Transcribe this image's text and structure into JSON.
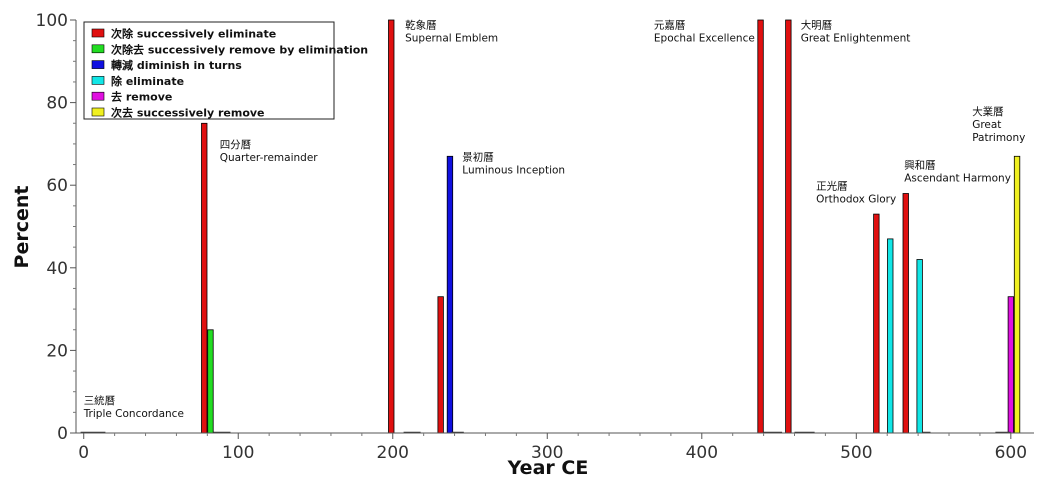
{
  "chart_data": {
    "type": "bar",
    "xlabel": "Year CE",
    "ylabel": "Percent",
    "xlim": [
      -5,
      615
    ],
    "ylim": [
      0,
      100
    ],
    "xticks": [
      0,
      100,
      200,
      300,
      400,
      500,
      600
    ],
    "yticks": [
      0,
      20,
      40,
      60,
      80,
      100
    ],
    "legend": {
      "position": "top-left"
    },
    "series": [
      {
        "name": "次除 successively eliminate",
        "color": "#e01010"
      },
      {
        "name": "次除去 successively remove by elimination",
        "color": "#22dd22"
      },
      {
        "name": "轉減 diminish in turns",
        "color": "#1010e0"
      },
      {
        "name": "除 eliminate",
        "color": "#11e6e6"
      },
      {
        "name": "去 remove",
        "color": "#e010e0"
      },
      {
        "name": "次去 successively remove",
        "color": "#f0f020"
      }
    ],
    "bars": [
      {
        "x": 78,
        "series": 0,
        "value": 75
      },
      {
        "x": 82,
        "series": 1,
        "value": 25
      },
      {
        "x": 199,
        "series": 0,
        "value": 100
      },
      {
        "x": 231,
        "series": 0,
        "value": 33
      },
      {
        "x": 237,
        "series": 2,
        "value": 67
      },
      {
        "x": 438,
        "series": 0,
        "value": 100
      },
      {
        "x": 456,
        "series": 0,
        "value": 100
      },
      {
        "x": 513,
        "series": 0,
        "value": 53
      },
      {
        "x": 522,
        "series": 3,
        "value": 47
      },
      {
        "x": 532,
        "series": 0,
        "value": 58
      },
      {
        "x": 541,
        "series": 3,
        "value": 42
      },
      {
        "x": 600,
        "series": 4,
        "value": 33
      },
      {
        "x": 604,
        "series": 5,
        "value": 67
      }
    ],
    "zero_segments": [
      [
        -2,
        14
      ],
      [
        84,
        95
      ],
      [
        207,
        218
      ],
      [
        238,
        246
      ],
      [
        440,
        452
      ],
      [
        460,
        473
      ],
      [
        543,
        548
      ],
      [
        590,
        600
      ]
    ],
    "annotations": [
      {
        "x": 0,
        "y": 7,
        "lines": [
          "三統曆",
          "Triple Concordance"
        ]
      },
      {
        "x": 88,
        "y": 69,
        "lines": [
          "四分曆",
          "Quarter-remainder"
        ]
      },
      {
        "x": 208,
        "y": 98,
        "lines": [
          "乾象曆",
          "Supernal Emblem"
        ]
      },
      {
        "x": 245,
        "y": 66,
        "lines": [
          "景初曆",
          "Luminous Inception"
        ]
      },
      {
        "x": 369,
        "y": 98,
        "lines": [
          "元嘉曆",
          "Epochal Excellence"
        ]
      },
      {
        "x": 464,
        "y": 98,
        "lines": [
          "大明曆",
          "Great Enlightenment"
        ]
      },
      {
        "x": 474,
        "y": 59,
        "lines": [
          "正光曆",
          "Orthodox Glory"
        ]
      },
      {
        "x": 531,
        "y": 64,
        "lines": [
          "興和曆",
          "Ascendant Harmony"
        ]
      },
      {
        "x": 575,
        "y": 77,
        "lines": [
          "大業曆",
          "Great",
          "Patrimony"
        ]
      }
    ]
  }
}
